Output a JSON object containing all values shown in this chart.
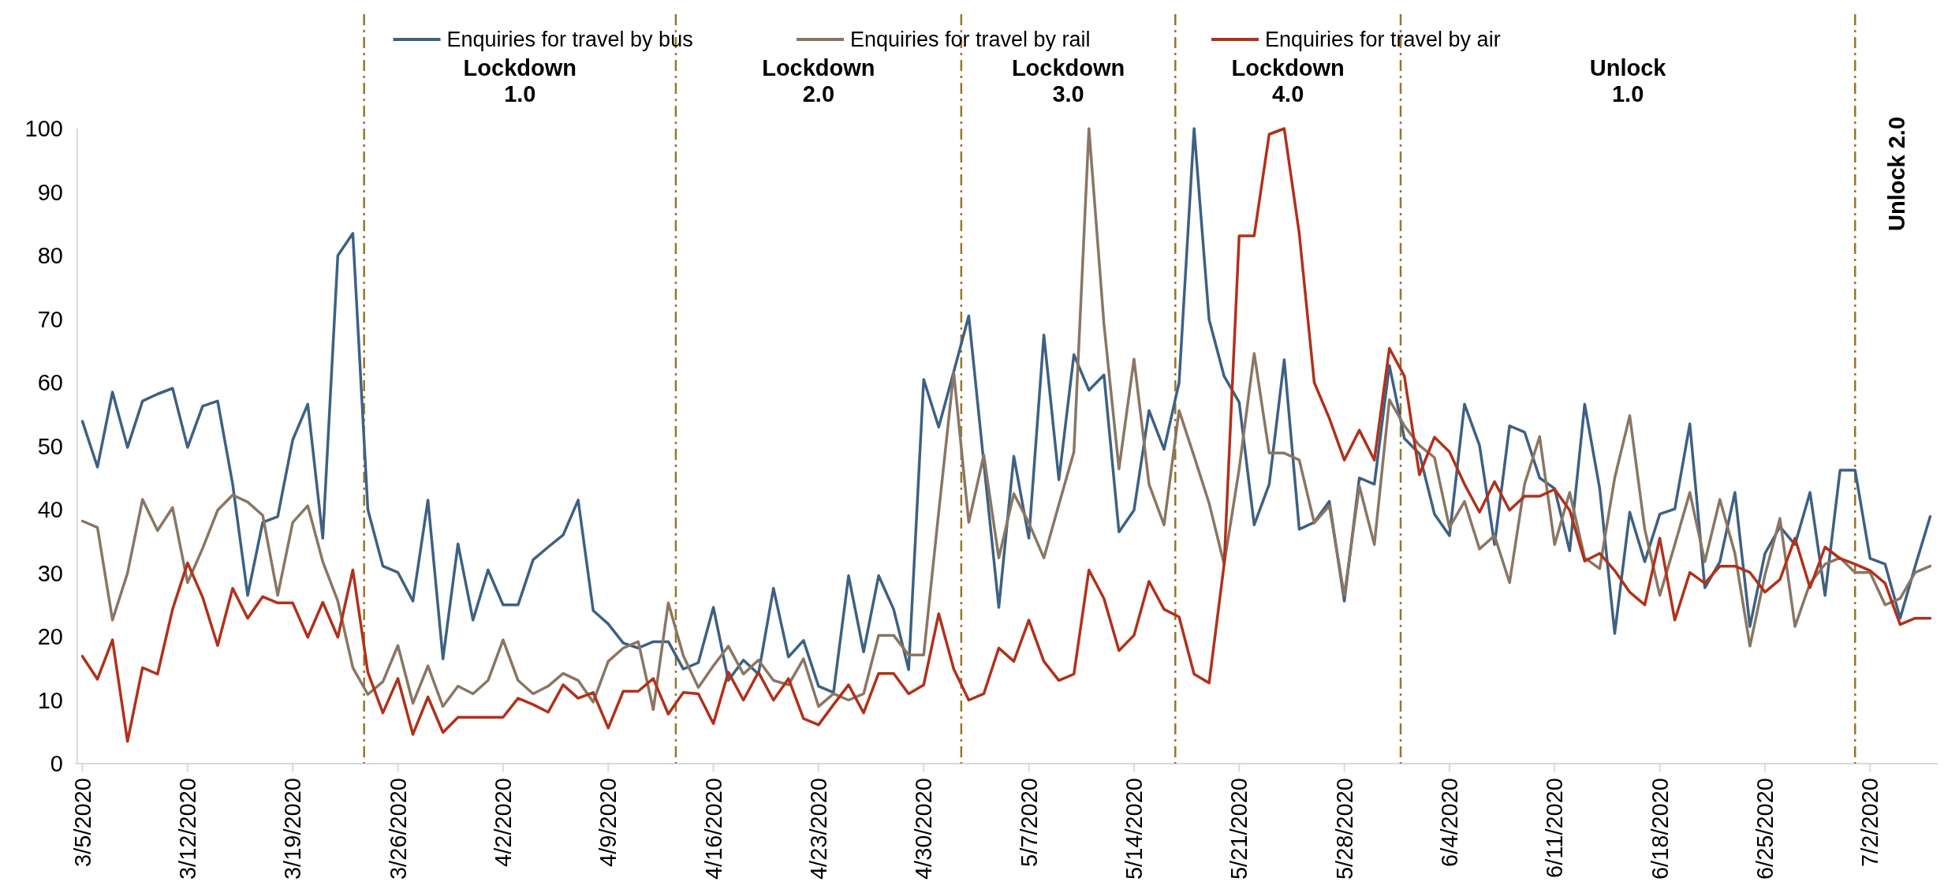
{
  "chart_data": {
    "type": "line",
    "legend": "top",
    "line_style": "solid",
    "x": [
      "2020-03-05",
      "2020-03-06",
      "2020-03-07",
      "2020-03-08",
      "2020-03-09",
      "2020-03-10",
      "2020-03-11",
      "2020-03-12",
      "2020-03-13",
      "2020-03-14",
      "2020-03-15",
      "2020-03-16",
      "2020-03-17",
      "2020-03-18",
      "2020-03-19",
      "2020-03-20",
      "2020-03-21",
      "2020-03-22",
      "2020-03-23",
      "2020-03-24",
      "2020-03-25",
      "2020-03-26",
      "2020-03-27",
      "2020-03-28",
      "2020-03-29",
      "2020-03-30",
      "2020-03-31",
      "2020-04-01",
      "2020-04-02",
      "2020-04-03",
      "2020-04-04",
      "2020-04-05",
      "2020-04-06",
      "2020-04-07",
      "2020-04-08",
      "2020-04-09",
      "2020-04-10",
      "2020-04-11",
      "2020-04-12",
      "2020-04-13",
      "2020-04-14",
      "2020-04-15",
      "2020-04-16",
      "2020-04-17",
      "2020-04-18",
      "2020-04-19",
      "2020-04-20",
      "2020-04-21",
      "2020-04-22",
      "2020-04-23",
      "2020-04-24",
      "2020-04-25",
      "2020-04-26",
      "2020-04-27",
      "2020-04-28",
      "2020-04-29",
      "2020-04-30",
      "2020-05-01",
      "2020-05-02",
      "2020-05-03",
      "2020-05-04",
      "2020-05-05",
      "2020-05-06",
      "2020-05-07",
      "2020-05-08",
      "2020-05-09",
      "2020-05-10",
      "2020-05-11",
      "2020-05-12",
      "2020-05-13",
      "2020-05-14",
      "2020-05-15",
      "2020-05-16",
      "2020-05-17",
      "2020-05-18",
      "2020-05-19",
      "2020-05-20",
      "2020-05-21",
      "2020-05-22",
      "2020-05-23",
      "2020-05-24",
      "2020-05-25",
      "2020-05-26",
      "2020-05-27",
      "2020-05-28",
      "2020-05-29",
      "2020-05-30",
      "2020-05-31",
      "2020-06-01",
      "2020-06-02",
      "2020-06-03",
      "2020-06-04",
      "2020-06-05",
      "2020-06-06",
      "2020-06-07",
      "2020-06-08",
      "2020-06-09",
      "2020-06-10",
      "2020-06-11",
      "2020-06-12",
      "2020-06-13",
      "2020-06-14",
      "2020-06-15",
      "2020-06-16",
      "2020-06-17",
      "2020-06-18",
      "2020-06-19",
      "2020-06-20",
      "2020-06-21",
      "2020-06-22",
      "2020-06-23",
      "2020-06-24",
      "2020-06-25",
      "2020-06-26",
      "2020-06-27",
      "2020-06-28",
      "2020-06-29",
      "2020-06-30",
      "2020-07-01",
      "2020-07-02",
      "2020-07-03",
      "2020-07-04",
      "2020-07-05",
      "2020-07-06"
    ],
    "xlim": [
      "2020-03-04T12:00",
      "2020-07-06T12:00"
    ],
    "xticks": [
      {
        "value": "2020-03-05",
        "label": "3/5/2020"
      },
      {
        "value": "2020-03-12",
        "label": "3/12/2020"
      },
      {
        "value": "2020-03-19",
        "label": "3/19/2020"
      },
      {
        "value": "2020-03-26",
        "label": "3/26/2020"
      },
      {
        "value": "2020-04-02",
        "label": "4/2/2020"
      },
      {
        "value": "2020-04-09",
        "label": "4/9/2020"
      },
      {
        "value": "2020-04-16",
        "label": "4/16/2020"
      },
      {
        "value": "2020-04-23",
        "label": "4/23/2020"
      },
      {
        "value": "2020-04-30",
        "label": "4/30/2020"
      },
      {
        "value": "2020-05-07",
        "label": "5/7/2020"
      },
      {
        "value": "2020-05-14",
        "label": "5/14/2020"
      },
      {
        "value": "2020-05-21",
        "label": "5/21/2020"
      },
      {
        "value": "2020-05-28",
        "label": "5/28/2020"
      },
      {
        "value": "2020-06-04",
        "label": "6/4/2020"
      },
      {
        "value": "2020-06-11",
        "label": "6/11/2020"
      },
      {
        "value": "2020-06-18",
        "label": "6/18/2020"
      },
      {
        "value": "2020-06-25",
        "label": "6/25/2020"
      },
      {
        "value": "2020-07-02",
        "label": "7/2/2020"
      }
    ],
    "ylim": [
      0,
      100
    ],
    "yticks": [
      0,
      10,
      20,
      30,
      40,
      50,
      60,
      70,
      80,
      90,
      100
    ],
    "series": [
      {
        "name": "Enquiries for travel by bus",
        "color": "#3d6183",
        "values": [
          53.9,
          46.7,
          58.5,
          49.8,
          57.1,
          58.2,
          59.1,
          49.8,
          56.3,
          57.1,
          44,
          26.5,
          38,
          38.9,
          51,
          56.6,
          35.5,
          80,
          83.5,
          40,
          31.1,
          30.1,
          25.6,
          41.5,
          16.5,
          34.6,
          22.6,
          30.5,
          25,
          25,
          32.1,
          34.1,
          36,
          41.5,
          24.1,
          22,
          19,
          18.2,
          19.2,
          19.2,
          14.9,
          15.9,
          24.6,
          13.1,
          16.3,
          14.1,
          27.6,
          16.8,
          19.4,
          12.2,
          11.2,
          29.6,
          17.6,
          29.6,
          24.3,
          14.8,
          60.5,
          53,
          61.7,
          70.5,
          47.4,
          24.6,
          48.4,
          35.5,
          67.5,
          44.7,
          64.4,
          58.8,
          61.2,
          36.5,
          39.9,
          55.6,
          49.5,
          60,
          100,
          69.9,
          61,
          56.9,
          37.6,
          44,
          63.6,
          36.9,
          38,
          41.3,
          25.6,
          45,
          44,
          62.7,
          51.2,
          48.8,
          39.3,
          35.9,
          56.6,
          50.1,
          34.5,
          53.2,
          52.2,
          45,
          43.3,
          33.5,
          56.6,
          43.3,
          20.5,
          39.6,
          31.8,
          39.3,
          40.1,
          53.5,
          27.7,
          31.8,
          42.7,
          21.6,
          33.1,
          37.3,
          34.5,
          42.7,
          26.5,
          46.2,
          46.2,
          32.3,
          31.4,
          22.9,
          31.1,
          38.9
        ]
      },
      {
        "name": "Enquiries for travel by rail",
        "color": "#8a7663",
        "values": [
          38.2,
          37.2,
          22.6,
          30,
          41.6,
          36.7,
          40.3,
          28.5,
          33.9,
          39.9,
          42.3,
          41.2,
          39.1,
          26.5,
          38,
          40.6,
          31.8,
          25.6,
          15.1,
          10.9,
          12.9,
          18.6,
          9.5,
          15.4,
          9,
          12.2,
          11,
          13.1,
          19.5,
          13.1,
          11,
          12.2,
          14.2,
          13.1,
          9.7,
          16.1,
          18.2,
          19.2,
          8.5,
          25.3,
          17,
          12,
          15.4,
          18.5,
          14.1,
          16.3,
          13.1,
          12.4,
          16.5,
          9,
          11,
          10,
          11,
          20.2,
          20.2,
          17.1,
          17.1,
          39.6,
          61.6,
          38,
          48.6,
          32.4,
          42.5,
          37.9,
          32.4,
          40.8,
          49.1,
          100,
          69.2,
          46.4,
          63.7,
          44,
          37.6,
          55.6,
          48.4,
          41,
          31.4,
          46.4,
          64.6,
          48.9,
          48.9,
          47.8,
          37.9,
          40.6,
          26.5,
          43.7,
          34.5,
          57.3,
          53.2,
          50.1,
          48.2,
          37.2,
          41.3,
          33.8,
          35.9,
          28.5,
          44,
          51.5,
          34.5,
          42.7,
          32.4,
          30.7,
          45,
          54.8,
          36.9,
          26.5,
          34.5,
          42.7,
          31.8,
          41.6,
          33.1,
          18.5,
          29.7,
          38.6,
          21.6,
          28.4,
          31.4,
          32.4,
          30.1,
          30.1,
          25,
          26,
          30.1,
          31.1
        ]
      },
      {
        "name": "Enquiries for travel by air",
        "color": "#b1311a",
        "values": [
          16.9,
          13.3,
          19.5,
          3.5,
          15.1,
          14.1,
          24.3,
          31.6,
          26.2,
          18.6,
          27.6,
          22.9,
          26.3,
          25.3,
          25.3,
          19.9,
          25.4,
          19.9,
          30.5,
          14.4,
          8,
          13.4,
          4.6,
          10.5,
          4.9,
          7.3,
          7.3,
          7.3,
          7.3,
          10.3,
          9.3,
          8.1,
          12.4,
          10.3,
          11.2,
          5.6,
          11.4,
          11.4,
          13.4,
          7.8,
          11.2,
          11,
          6.3,
          14.4,
          10,
          14.4,
          10,
          13.4,
          7.1,
          6.1,
          9.3,
          12.4,
          8,
          14.2,
          14.2,
          11,
          12.4,
          23.6,
          14.9,
          10,
          11,
          18.2,
          16.1,
          22.6,
          16.1,
          13.1,
          14.1,
          30.5,
          26,
          17.8,
          20.2,
          28.7,
          24.3,
          23.1,
          14.1,
          12.7,
          31.4,
          83.1,
          83.1,
          99.1,
          100,
          83.5,
          60,
          54.4,
          47.8,
          52.5,
          47.8,
          65.4,
          61,
          45.5,
          51.4,
          49.1,
          44,
          39.6,
          44.4,
          39.9,
          42.1,
          42.1,
          43.2,
          39.9,
          31.9,
          33.1,
          30.4,
          27,
          25,
          35.5,
          22.6,
          30.1,
          28.4,
          31.1,
          31.1,
          30.1,
          27,
          29,
          35.5,
          27.7,
          34.1,
          32.3,
          31.4,
          30.4,
          28.4,
          21.9,
          22.9,
          22.9
        ]
      }
    ],
    "ref_lines": [
      {
        "axis": "x",
        "value": "2020-03-23T18:00",
        "color": "#9a7526"
      },
      {
        "axis": "x",
        "value": "2020-04-13T12:00",
        "color": "#9a7526"
      },
      {
        "axis": "x",
        "value": "2020-05-02T12:00",
        "color": "#9a7526"
      },
      {
        "axis": "x",
        "value": "2020-05-16T18:00",
        "color": "#9a7526"
      },
      {
        "axis": "x",
        "value": "2020-05-31T18:00",
        "color": "#9a7526"
      },
      {
        "axis": "x",
        "value": "2020-07-01",
        "color": "#9a7526"
      }
    ],
    "annotations": [
      "Lockdown 1.0",
      "Lockdown 2.0",
      "Lockdown 3.0",
      "Lockdown 4.0",
      "Unlock 1.0",
      "Unlock 2.0"
    ]
  }
}
